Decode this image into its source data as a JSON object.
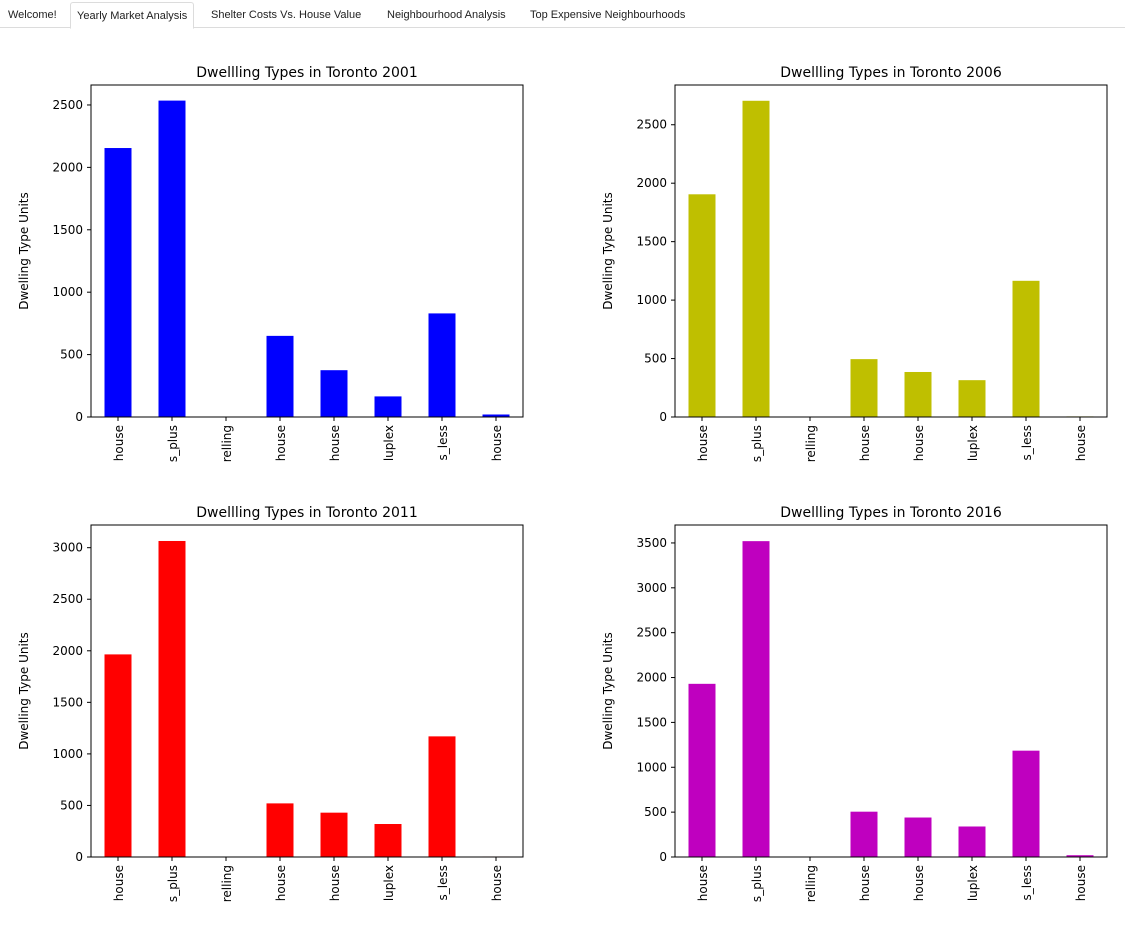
{
  "tabs": [
    {
      "label": "Welcome!",
      "active": false
    },
    {
      "label": "Yearly Market Analysis",
      "active": true
    },
    {
      "label": "Shelter Costs Vs. House Value",
      "active": false
    },
    {
      "label": "Neighbourhood Analysis",
      "active": false
    },
    {
      "label": "Top Expensive Neighbourhoods",
      "active": false
    }
  ],
  "chart_data": [
    {
      "type": "bar",
      "title": "Dwellling Types in Toronto 2001",
      "ylabel": "Dwelling Type Units",
      "xlabel": "",
      "color": "#0000ff",
      "categories": [
        "house",
        "s_plus",
        "relling",
        "house",
        "house",
        "luplex",
        "s_less",
        "house"
      ],
      "values": [
        2155,
        2535,
        0,
        650,
        375,
        165,
        830,
        20
      ],
      "ylim": [
        0,
        2660
      ],
      "yticks": [
        0,
        500,
        1000,
        1500,
        2000,
        2500
      ]
    },
    {
      "type": "bar",
      "title": "Dwellling Types in Toronto 2006",
      "ylabel": "Dwelling Type Units",
      "xlabel": "",
      "color": "#bfbf00",
      "categories": [
        "house",
        "s_plus",
        "relling",
        "house",
        "house",
        "luplex",
        "s_less",
        "house"
      ],
      "values": [
        1905,
        2705,
        0,
        495,
        385,
        315,
        1165,
        5
      ],
      "ylim": [
        0,
        2840
      ],
      "yticks": [
        0,
        500,
        1000,
        1500,
        2000,
        2500
      ]
    },
    {
      "type": "bar",
      "title": "Dwellling Types in Toronto 2011",
      "ylabel": "Dwelling Type Units",
      "xlabel": "",
      "color": "#ff0000",
      "categories": [
        "house",
        "s_plus",
        "relling",
        "house",
        "house",
        "luplex",
        "s_less",
        "house"
      ],
      "values": [
        1965,
        3065,
        0,
        520,
        430,
        320,
        1170,
        5
      ],
      "ylim": [
        0,
        3220
      ],
      "yticks": [
        0,
        500,
        1000,
        1500,
        2000,
        2500,
        3000
      ]
    },
    {
      "type": "bar",
      "title": "Dwellling Types in Toronto 2016",
      "ylabel": "Dwelling Type Units",
      "xlabel": "",
      "color": "#bf00bf",
      "categories": [
        "house",
        "s_plus",
        "relling",
        "house",
        "house",
        "luplex",
        "s_less",
        "house"
      ],
      "values": [
        1930,
        3520,
        0,
        505,
        440,
        340,
        1185,
        20
      ],
      "ylim": [
        0,
        3700
      ],
      "yticks": [
        0,
        500,
        1000,
        1500,
        2000,
        2500,
        3000,
        3500
      ]
    }
  ]
}
